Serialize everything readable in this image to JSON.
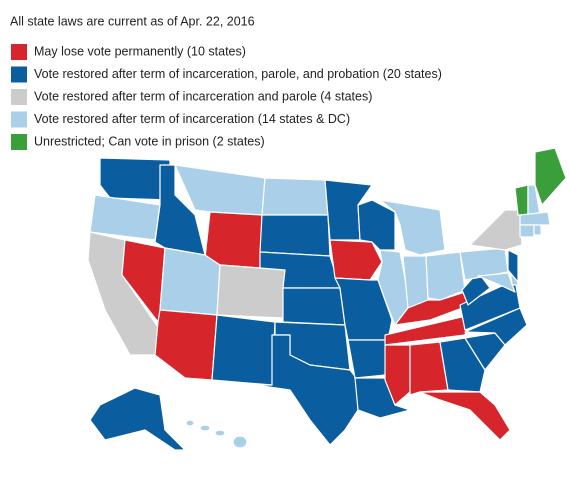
{
  "note": "All state laws are current as of Apr. 22, 2016",
  "legend": {
    "items": [
      {
        "label": "May lose vote permanently (10 states)",
        "color": "#d6262b"
      },
      {
        "label": "Vote restored after term of incarceration, parole, and probation (20 states)",
        "color": "#0a5d9e"
      },
      {
        "label": "Vote restored after term of incarceration and parole (4 states)",
        "color": "#cccccc"
      },
      {
        "label": "Vote restored after term of incarceration (14 states & DC)",
        "color": "#a9d0e8"
      },
      {
        "label": "Unrestricted; Can vote in prison (2 states)",
        "color": "#3a9e3a"
      }
    ]
  }
}
